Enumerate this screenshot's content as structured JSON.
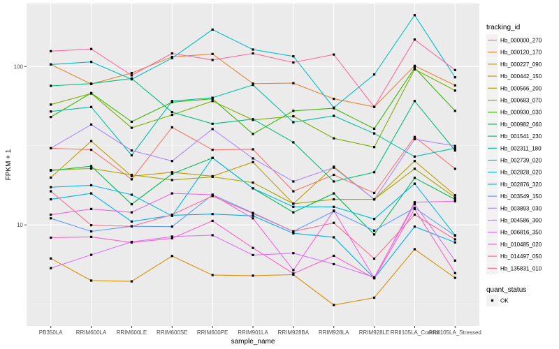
{
  "chart_data": {
    "type": "line",
    "title": "",
    "xlabel": "sample_name",
    "ylabel": "FPKM + 1",
    "yscale": "log10",
    "ylim": [
      2.3,
      250
    ],
    "y_ticks": [
      10,
      100
    ],
    "y_tick_labels": [
      "10",
      "100"
    ],
    "grid": true,
    "legend_position": "right",
    "categories": [
      "PB350LA",
      "RRIM600LA",
      "RRIM600LE",
      "RRIM600SE",
      "RRIM600PE",
      "RRIM901LA",
      "RRIM928BA",
      "RRIM928LA",
      "RRIM928LE",
      "RRII105LA_Control",
      "RRII105LA_Stressed"
    ],
    "legend_title": "tracking_id",
    "point_legend": {
      "title": "quant_status",
      "items": [
        "OK"
      ]
    },
    "series": [
      {
        "name": "Hb_000000_270",
        "color": "#F8766D",
        "values": [
          30.5,
          29.8,
          19.4,
          41.3,
          29.8,
          30.0,
          16.3,
          20.7,
          15.9,
          35.9,
          22.6
        ]
      },
      {
        "name": "Hb_000120_170",
        "color": "#EA8331",
        "values": [
          103,
          77.5,
          91.0,
          115,
          120,
          78.0,
          78.5,
          62.5,
          55.7,
          101,
          76.0
        ]
      },
      {
        "name": "Hb_000227_090",
        "color": "#D89000",
        "values": [
          6.14,
          4.45,
          4.4,
          6.36,
          4.82,
          4.78,
          4.85,
          3.12,
          3.47,
          7.02,
          4.63
        ]
      },
      {
        "name": "Hb_000442_150",
        "color": "#C09B00",
        "values": [
          19.9,
          33.8,
          20.3,
          21.5,
          20.3,
          24.9,
          13.6,
          23.3,
          14.5,
          25.3,
          15.4
        ]
      },
      {
        "name": "Hb_000566_200",
        "color": "#A3A500",
        "values": [
          22.2,
          22.7,
          20.7,
          19.2,
          20.1,
          18.5,
          13.6,
          14.5,
          14.5,
          22.6,
          14.9
        ]
      },
      {
        "name": "Hb_000683_070",
        "color": "#7CAE00",
        "values": [
          57.5,
          67.5,
          41.0,
          49.5,
          60.5,
          46.0,
          48.5,
          35.2,
          31.0,
          96.0,
          70.5
        ]
      },
      {
        "name": "Hb_000930_030",
        "color": "#39B600",
        "values": [
          48.0,
          68.0,
          44.8,
          59.5,
          62.5,
          37.5,
          52.5,
          54.5,
          40.5,
          98.0,
          52.5
        ]
      },
      {
        "name": "Hb_000982_060",
        "color": "#00BB4E",
        "values": [
          22.0,
          23.5,
          13.5,
          21.0,
          26.5,
          17.0,
          12.0,
          15.8,
          8.7,
          19.8,
          14.5
        ]
      },
      {
        "name": "Hb_001541_230",
        "color": "#00BF7D",
        "values": [
          75.5,
          78.0,
          84.0,
          51.5,
          43.5,
          46.5,
          33.2,
          18.8,
          21.5,
          60.5,
          29.5
        ]
      },
      {
        "name": "Hb_002311_180",
        "color": "#00C1A3",
        "values": [
          52.0,
          55.5,
          27.5,
          60.5,
          63.5,
          76.5,
          44.5,
          48.8,
          37.8,
          27.0,
          30.5
        ]
      },
      {
        "name": "Hb_002739_020",
        "color": "#00BFC4",
        "values": [
          103,
          107,
          83.0,
          113,
          171,
          128,
          116,
          55.0,
          89.0,
          211,
          85.5
        ]
      },
      {
        "name": "Hb_002828_020",
        "color": "#00B9E3",
        "values": [
          17.3,
          17.8,
          15.5,
          11.4,
          26.5,
          17.0,
          13.0,
          13.0,
          10.9,
          18.2,
          8.6
        ]
      },
      {
        "name": "Hb_002876_320",
        "color": "#00ADFA",
        "values": [
          14.5,
          15.8,
          10.5,
          11.5,
          11.7,
          11.4,
          8.85,
          8.35,
          4.61,
          9.75,
          7.75
        ]
      },
      {
        "name": "Hb_003549_150",
        "color": "#619CFF",
        "values": [
          11.0,
          9.1,
          9.8,
          9.75,
          15.5,
          11.9,
          9.1,
          12.2,
          9.2,
          12.8,
          8.55
        ]
      },
      {
        "name": "Hb_003893_030",
        "color": "#AE87FF",
        "values": [
          30.5,
          43.0,
          29.5,
          25.3,
          40.3,
          26.3,
          18.8,
          23.0,
          14.5,
          34.8,
          31.5
        ]
      },
      {
        "name": "Hb_004586_300",
        "color": "#DB72FB",
        "values": [
          5.33,
          6.47,
          7.81,
          8.44,
          8.61,
          6.45,
          6.63,
          5.65,
          4.67,
          13.5,
          5.95
        ]
      },
      {
        "name": "Hb_006816_350",
        "color": "#F564E3",
        "values": [
          11.6,
          12.6,
          12.0,
          15.8,
          15.5,
          11.0,
          5.18,
          12.3,
          4.61,
          13.9,
          14.1
        ]
      },
      {
        "name": "Hb_010485_020",
        "color": "#FF61C3",
        "values": [
          8.3,
          8.4,
          7.74,
          8.23,
          10.6,
          7.15,
          4.93,
          6.38,
          4.6,
          12.6,
          4.96
        ]
      },
      {
        "name": "Hb_014497_050",
        "color": "#FF67A4",
        "values": [
          125,
          129,
          88.0,
          121,
          110,
          121,
          106,
          119,
          55.5,
          148,
          95.0
        ]
      },
      {
        "name": "Hb_135831_010",
        "color": "#FF6C91",
        "values": [
          16.3,
          9.95,
          9.8,
          11.6,
          15.2,
          11.8,
          9.1,
          10.3,
          6.12,
          11.6,
          8.1
        ]
      }
    ]
  }
}
